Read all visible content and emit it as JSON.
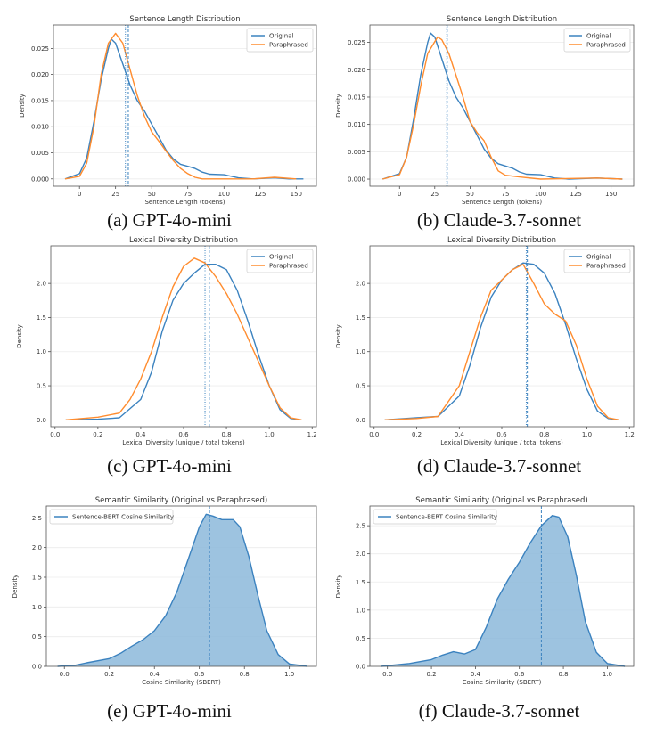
{
  "colors": {
    "original": "#3b82bf",
    "paraphrased": "#ff8c2e",
    "fill": "#8cb8db"
  },
  "captions": [
    "(a) GPT-4o-mini",
    "(b) Claude-3.7-sonnet",
    "(c) GPT-4o-mini",
    "(d) Claude-3.7-sonnet",
    "(e) GPT-4o-mini",
    "(f) Claude-3.7-sonnet"
  ],
  "chart_data": [
    {
      "type": "line",
      "title": "Sentence Length Distribution",
      "xlabel": "Sentence Length (tokens)",
      "ylabel": "Density",
      "xlim": [
        -18,
        164
      ],
      "ylim": [
        -0.0014,
        0.0295
      ],
      "xticks": [
        "0",
        "25",
        "50",
        "75",
        "100",
        "125",
        "150"
      ],
      "xtickvals": [
        0,
        25,
        50,
        75,
        100,
        125,
        150
      ],
      "yticks": [
        "0.000",
        "0.005",
        "0.010",
        "0.015",
        "0.020",
        "0.025"
      ],
      "ytickvals": [
        0,
        0.005,
        0.01,
        0.015,
        0.02,
        0.025
      ],
      "grid": true,
      "legend": "top-right",
      "series": [
        {
          "name": "Original",
          "color": "original",
          "x": [
            -10,
            0,
            5,
            10,
            15,
            20,
            22,
            25,
            30,
            35,
            40,
            45,
            50,
            55,
            60,
            65,
            70,
            75,
            80,
            85,
            90,
            100,
            110,
            120,
            135,
            145,
            155
          ],
          "y": [
            0,
            0.001,
            0.004,
            0.011,
            0.019,
            0.025,
            0.0268,
            0.026,
            0.022,
            0.018,
            0.015,
            0.013,
            0.0105,
            0.008,
            0.0055,
            0.0038,
            0.0028,
            0.0024,
            0.002,
            0.0013,
            0.0009,
            0.0008,
            0.0002,
            0,
            0.0002,
            0,
            0
          ]
        },
        {
          "name": "Paraphrased",
          "color": "paraphrased",
          "x": [
            -10,
            0,
            5,
            10,
            15,
            20,
            25,
            30,
            35,
            40,
            45,
            50,
            55,
            60,
            65,
            70,
            75,
            80,
            85,
            100,
            120,
            135,
            150
          ],
          "y": [
            0,
            0.0005,
            0.003,
            0.01,
            0.02,
            0.026,
            0.0279,
            0.026,
            0.021,
            0.016,
            0.012,
            0.009,
            0.0072,
            0.0053,
            0.0035,
            0.002,
            0.001,
            0.0003,
            0,
            0,
            0,
            0.0003,
            0
          ]
        }
      ],
      "vlines": [
        {
          "x": 31.8,
          "style": "dotted"
        },
        {
          "x": 33.8,
          "style": "dashed"
        }
      ]
    },
    {
      "type": "line",
      "title": "Sentence Length Distribution",
      "xlabel": "Sentence Length (tokens)",
      "ylabel": "Density",
      "xlim": [
        -21,
        166
      ],
      "ylim": [
        -0.0013,
        0.0282
      ],
      "xticks": [
        "0",
        "25",
        "50",
        "75",
        "100",
        "125",
        "150"
      ],
      "xtickvals": [
        0,
        25,
        50,
        75,
        100,
        125,
        150
      ],
      "yticks": [
        "0.000",
        "0.005",
        "0.010",
        "0.015",
        "0.020",
        "0.025"
      ],
      "ytickvals": [
        0,
        0.005,
        0.01,
        0.015,
        0.02,
        0.025
      ],
      "grid": true,
      "legend": "top-right",
      "series": [
        {
          "name": "Original",
          "color": "original",
          "x": [
            -12,
            0,
            5,
            10,
            15,
            20,
            22,
            25,
            30,
            35,
            40,
            45,
            50,
            55,
            60,
            65,
            70,
            75,
            80,
            85,
            90,
            100,
            110,
            120,
            140,
            158
          ],
          "y": [
            0,
            0.001,
            0.004,
            0.011,
            0.019,
            0.025,
            0.0267,
            0.026,
            0.022,
            0.018,
            0.015,
            0.013,
            0.0105,
            0.008,
            0.0055,
            0.0038,
            0.0028,
            0.0024,
            0.002,
            0.0013,
            0.0009,
            0.0008,
            0.0002,
            0,
            0.0002,
            0
          ]
        },
        {
          "name": "Paraphrased",
          "color": "paraphrased",
          "x": [
            -12,
            0,
            5,
            10,
            15,
            20,
            27,
            30,
            35,
            40,
            45,
            50,
            55,
            60,
            65,
            70,
            75,
            85,
            100,
            140,
            158
          ],
          "y": [
            0,
            0.0008,
            0.004,
            0.01,
            0.017,
            0.023,
            0.026,
            0.0255,
            0.023,
            0.019,
            0.015,
            0.0105,
            0.0085,
            0.007,
            0.004,
            0.0015,
            0.0007,
            0.0004,
            0,
            0.0002,
            0
          ]
        }
      ],
      "vlines": [
        {
          "x": 33.5,
          "style": "dotted"
        },
        {
          "x": 33.8,
          "style": "dashed"
        }
      ]
    },
    {
      "type": "line",
      "title": "Lexical Diversity Distribution",
      "xlabel": "Lexical Diversity (unique / total tokens)",
      "ylabel": "Density",
      "xlim": [
        -0.02,
        1.22
      ],
      "ylim": [
        -0.1,
        2.55
      ],
      "xticks": [
        "0.0",
        "0.2",
        "0.4",
        "0.6",
        "0.8",
        "1.0",
        "1.2"
      ],
      "xtickvals": [
        0,
        0.2,
        0.4,
        0.6,
        0.8,
        1.0,
        1.2
      ],
      "yticks": [
        "0.0",
        "0.5",
        "1.0",
        "1.5",
        "2.0"
      ],
      "ytickvals": [
        0,
        0.5,
        1,
        1.5,
        2
      ],
      "grid": true,
      "legend": "top-right",
      "series": [
        {
          "name": "Original",
          "color": "original",
          "x": [
            0.05,
            0.2,
            0.3,
            0.4,
            0.45,
            0.5,
            0.55,
            0.6,
            0.65,
            0.7,
            0.75,
            0.8,
            0.85,
            0.9,
            0.95,
            1.0,
            1.05,
            1.1,
            1.15
          ],
          "y": [
            0,
            0.01,
            0.03,
            0.3,
            0.7,
            1.3,
            1.75,
            2.0,
            2.15,
            2.28,
            2.28,
            2.2,
            1.9,
            1.45,
            0.95,
            0.5,
            0.15,
            0.02,
            0
          ]
        },
        {
          "name": "Paraphrased",
          "color": "paraphrased",
          "x": [
            0.05,
            0.2,
            0.3,
            0.35,
            0.4,
            0.45,
            0.5,
            0.55,
            0.6,
            0.65,
            0.7,
            0.75,
            0.8,
            0.85,
            0.9,
            0.95,
            1.0,
            1.05,
            1.1,
            1.15
          ],
          "y": [
            0,
            0.04,
            0.1,
            0.3,
            0.6,
            1.0,
            1.5,
            1.95,
            2.25,
            2.37,
            2.3,
            2.1,
            1.85,
            1.55,
            1.2,
            0.85,
            0.5,
            0.18,
            0.03,
            0
          ]
        }
      ],
      "vlines": [
        {
          "x": 0.7,
          "style": "dotted"
        },
        {
          "x": 0.72,
          "style": "dashed"
        }
      ]
    },
    {
      "type": "line",
      "title": "Lexical Diversity Distribution",
      "xlabel": "Lexical Diversity (unique / total tokens)",
      "ylabel": "Density",
      "xlim": [
        -0.02,
        1.22
      ],
      "ylim": [
        -0.1,
        2.55
      ],
      "xticks": [
        "0.0",
        "0.2",
        "0.4",
        "0.6",
        "0.8",
        "1.0",
        "1.2"
      ],
      "xtickvals": [
        0,
        0.2,
        0.4,
        0.6,
        0.8,
        1.0,
        1.2
      ],
      "yticks": [
        "0.0",
        "0.5",
        "1.0",
        "1.5",
        "2.0"
      ],
      "ytickvals": [
        0,
        0.5,
        1,
        1.5,
        2
      ],
      "grid": true,
      "legend": "top-right",
      "series": [
        {
          "name": "Original",
          "color": "original",
          "x": [
            0.05,
            0.2,
            0.3,
            0.4,
            0.45,
            0.5,
            0.55,
            0.6,
            0.65,
            0.7,
            0.75,
            0.8,
            0.85,
            0.9,
            0.95,
            1.0,
            1.05,
            1.1,
            1.15
          ],
          "y": [
            0,
            0.03,
            0.05,
            0.35,
            0.8,
            1.35,
            1.8,
            2.05,
            2.2,
            2.3,
            2.28,
            2.15,
            1.85,
            1.4,
            0.9,
            0.45,
            0.13,
            0.02,
            0
          ]
        },
        {
          "name": "Paraphrased",
          "color": "paraphrased",
          "x": [
            0.05,
            0.2,
            0.3,
            0.4,
            0.5,
            0.55,
            0.6,
            0.65,
            0.7,
            0.75,
            0.8,
            0.85,
            0.9,
            0.95,
            1.0,
            1.05,
            1.1,
            1.15
          ],
          "y": [
            0,
            0.02,
            0.05,
            0.5,
            1.5,
            1.9,
            2.05,
            2.2,
            2.28,
            2.0,
            1.7,
            1.55,
            1.45,
            1.1,
            0.6,
            0.2,
            0.03,
            0
          ]
        }
      ],
      "vlines": [
        {
          "x": 0.715,
          "style": "dotted"
        },
        {
          "x": 0.72,
          "style": "dashed"
        }
      ]
    },
    {
      "type": "area",
      "title": "Semantic Similarity (Original vs Paraphrased)",
      "xlabel": "Cosine Similarity (SBERT)",
      "ylabel": "Density",
      "xlim": [
        -0.08,
        1.12
      ],
      "ylim": [
        0,
        2.7
      ],
      "xticks": [
        "0.0",
        "0.2",
        "0.4",
        "0.6",
        "0.8",
        "1.0"
      ],
      "xtickvals": [
        0,
        0.2,
        0.4,
        0.6,
        0.8,
        1.0
      ],
      "yticks": [
        "0.0",
        "0.5",
        "1.0",
        "1.5",
        "2.0",
        "2.5"
      ],
      "ytickvals": [
        0,
        0.5,
        1,
        1.5,
        2,
        2.5
      ],
      "grid": true,
      "legend": "top-left",
      "series": [
        {
          "name": "Sentence-BERT Cosine Similarity",
          "color": "original",
          "fill": true,
          "x": [
            -0.03,
            0.05,
            0.1,
            0.2,
            0.25,
            0.3,
            0.35,
            0.4,
            0.45,
            0.5,
            0.55,
            0.6,
            0.63,
            0.66,
            0.7,
            0.75,
            0.78,
            0.82,
            0.86,
            0.9,
            0.95,
            1.0,
            1.08
          ],
          "y": [
            0,
            0.02,
            0.06,
            0.13,
            0.22,
            0.34,
            0.45,
            0.6,
            0.85,
            1.25,
            1.8,
            2.35,
            2.56,
            2.53,
            2.47,
            2.47,
            2.35,
            1.85,
            1.2,
            0.6,
            0.2,
            0.04,
            0
          ]
        }
      ],
      "vlines": [
        {
          "x": 0.645,
          "style": "dashed"
        }
      ]
    },
    {
      "type": "area",
      "title": "Semantic Similarity (Original vs Paraphrased)",
      "xlabel": "Cosine Similarity (SBERT)",
      "ylabel": "Density",
      "xlim": [
        -0.08,
        1.12
      ],
      "ylim": [
        0,
        2.85
      ],
      "xticks": [
        "0.0",
        "0.2",
        "0.4",
        "0.6",
        "0.8",
        "1.0"
      ],
      "xtickvals": [
        0,
        0.2,
        0.4,
        0.6,
        0.8,
        1.0
      ],
      "yticks": [
        "0.0",
        "0.5",
        "1.0",
        "1.5",
        "2.0",
        "2.5"
      ],
      "ytickvals": [
        0,
        0.5,
        1,
        1.5,
        2,
        2.5
      ],
      "grid": true,
      "legend": "top-left",
      "series": [
        {
          "name": "Sentence-BERT Cosine Similarity",
          "color": "original",
          "fill": true,
          "x": [
            -0.03,
            0.1,
            0.2,
            0.25,
            0.3,
            0.35,
            0.4,
            0.45,
            0.5,
            0.55,
            0.6,
            0.65,
            0.7,
            0.75,
            0.78,
            0.82,
            0.86,
            0.9,
            0.95,
            1.0,
            1.08
          ],
          "y": [
            0,
            0.05,
            0.12,
            0.2,
            0.26,
            0.22,
            0.3,
            0.7,
            1.2,
            1.55,
            1.85,
            2.2,
            2.5,
            2.68,
            2.65,
            2.3,
            1.6,
            0.8,
            0.25,
            0.05,
            0
          ]
        }
      ],
      "vlines": [
        {
          "x": 0.7,
          "style": "dashed"
        }
      ]
    }
  ]
}
